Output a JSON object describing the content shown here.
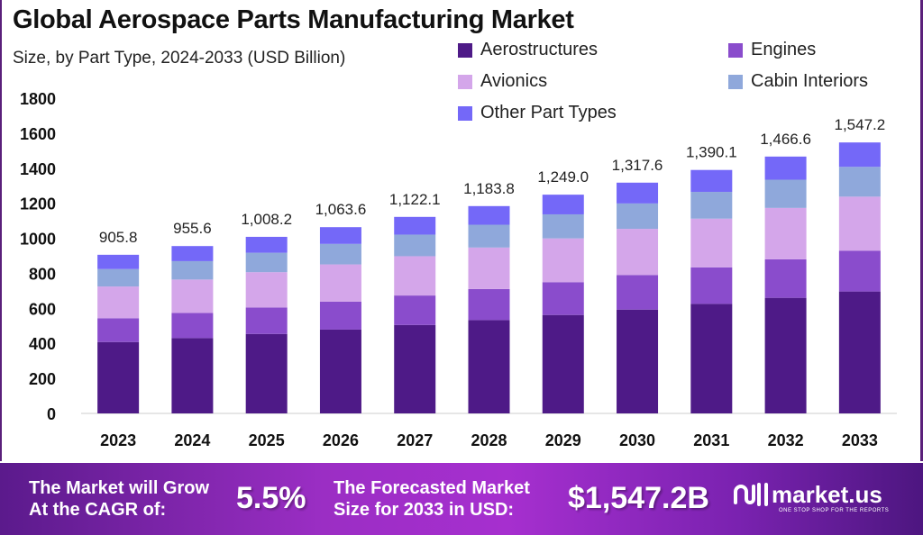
{
  "chart_data": {
    "type": "bar",
    "stacked": true,
    "title": "Global Aerospace Parts Manufacturing Market",
    "subtitle": "Size, by Part Type, 2024-2033 (USD Billion)",
    "categories": [
      "2023",
      "2024",
      "2025",
      "2026",
      "2027",
      "2028",
      "2029",
      "2030",
      "2031",
      "2032",
      "2033"
    ],
    "totals": [
      905.8,
      955.6,
      1008.2,
      1063.6,
      1122.1,
      1183.8,
      1249.0,
      1317.6,
      1390.1,
      1466.6,
      1547.2
    ],
    "total_labels": [
      "905.8",
      "955.6",
      "1,008.2",
      "1,063.6",
      "1,122.1",
      "1,183.8",
      "1,249.0",
      "1,317.6",
      "1,390.1",
      "1,466.6",
      "1,547.2"
    ],
    "series": [
      {
        "name": "Aerostructures",
        "color": "#4e1a87",
        "values": [
          407.6,
          430.0,
          453.7,
          478.6,
          504.9,
          532.7,
          562.1,
          592.9,
          625.5,
          660.0,
          696.2
        ]
      },
      {
        "name": "Engines",
        "color": "#8a4ccc",
        "values": [
          135.9,
          143.3,
          151.2,
          159.5,
          168.3,
          177.6,
          187.4,
          197.6,
          208.5,
          220.0,
          232.1
        ]
      },
      {
        "name": "Avionics",
        "color": "#d4a6ea",
        "values": [
          181.2,
          191.1,
          201.6,
          212.7,
          224.4,
          236.8,
          249.8,
          263.5,
          278.0,
          293.3,
          309.4
        ]
      },
      {
        "name": "Cabin Interiors",
        "color": "#8fa8db",
        "values": [
          99.6,
          105.1,
          110.9,
          117.0,
          123.4,
          130.2,
          137.4,
          144.9,
          152.9,
          161.3,
          170.2
        ]
      },
      {
        "name": "Other Part Types",
        "color": "#7468f8",
        "values": [
          81.5,
          86.1,
          90.8,
          95.8,
          101.1,
          106.5,
          112.3,
          118.7,
          125.2,
          132.0,
          139.3
        ]
      }
    ],
    "yticks": [
      0,
      200,
      400,
      600,
      800,
      1000,
      1200,
      1400,
      1600,
      1800
    ],
    "ylim": [
      0,
      1800
    ],
    "grid": false,
    "legend_placement": "top-right"
  },
  "footer": {
    "cagr_text_1": "The Market will Grow",
    "cagr_text_2": "At the CAGR of:",
    "cagr_value": "5.5%",
    "forecast_text_1": "The Forecasted Market",
    "forecast_text_2": "Size for 2033 in USD:",
    "forecast_value": "$1,547.2B",
    "brand": "market.us",
    "brand_tagline": "ONE STOP SHOP FOR THE REPORTS"
  }
}
